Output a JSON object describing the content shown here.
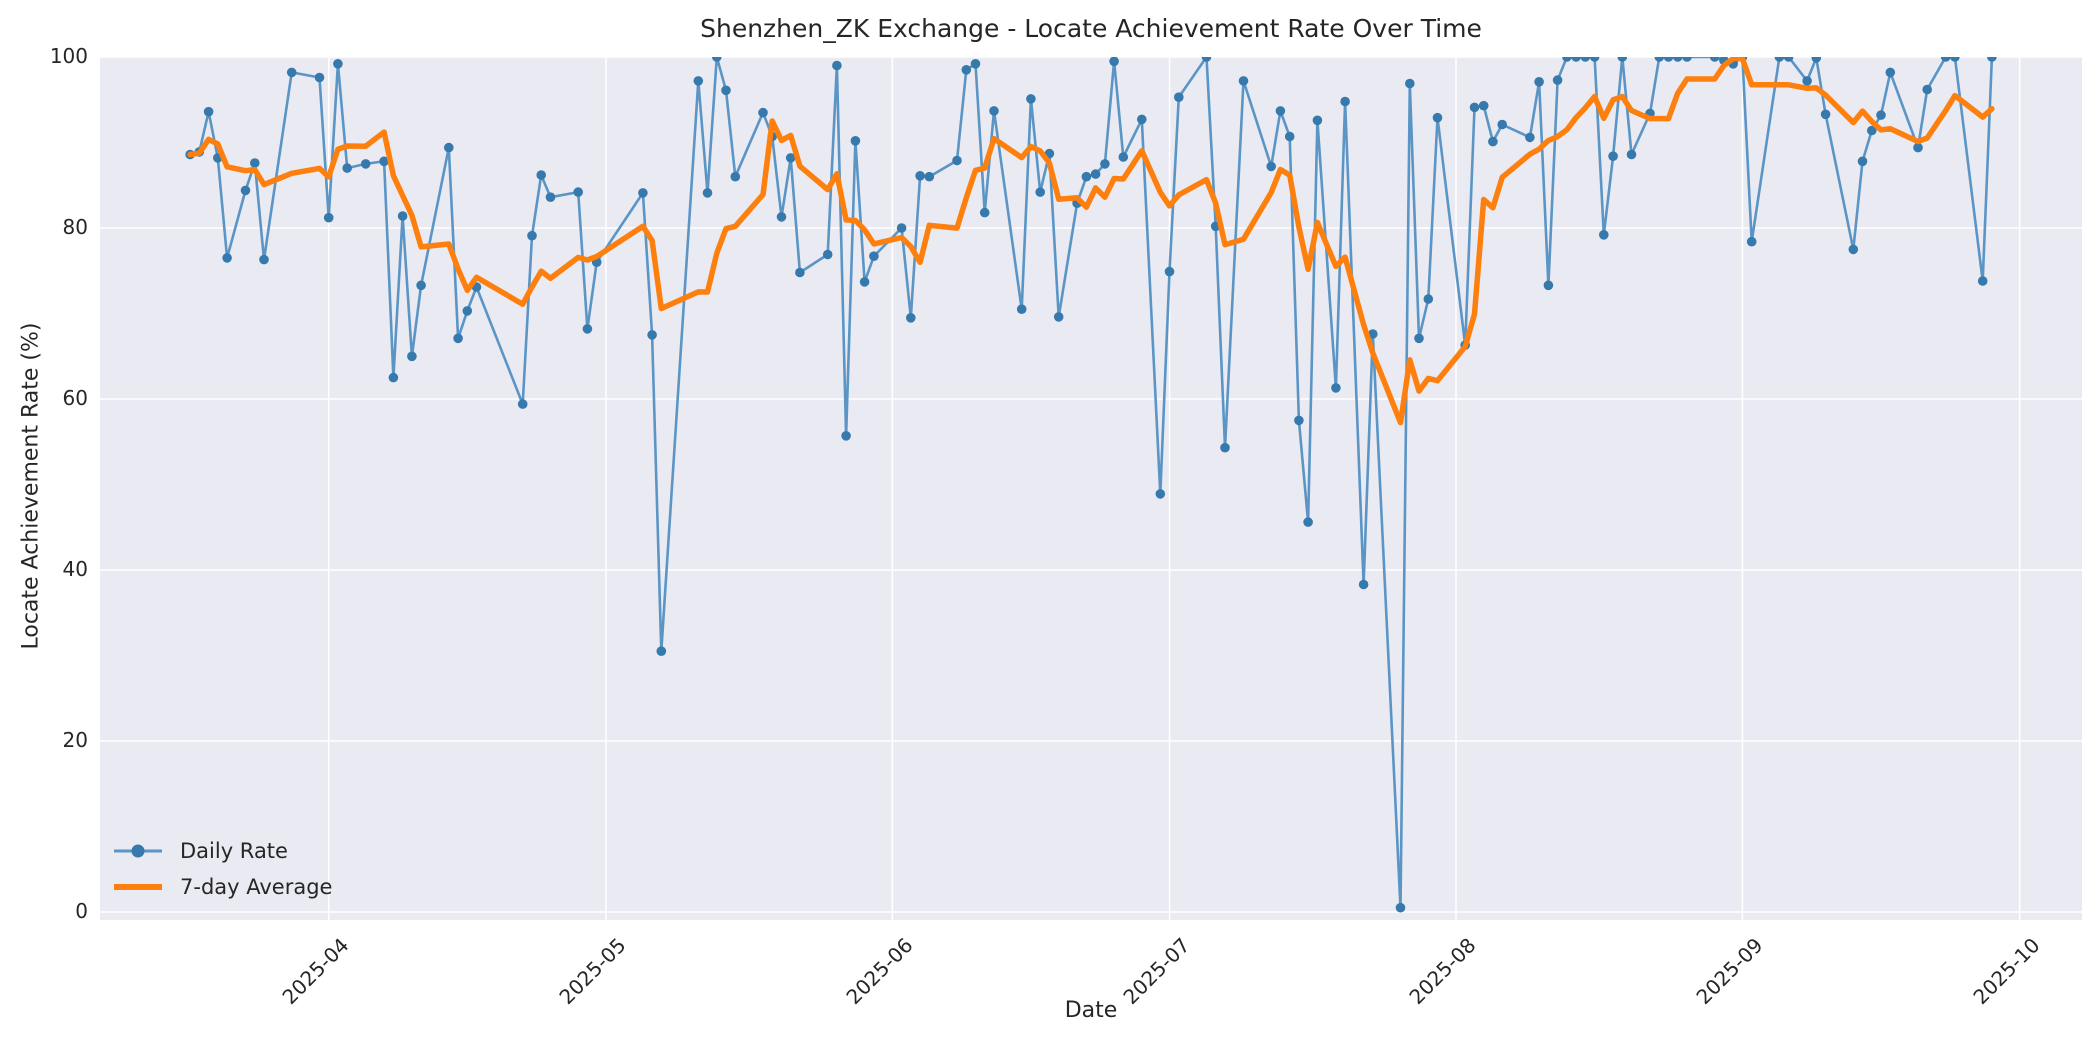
{
  "title": "Shenzhen_ZK Exchange - Locate Achievement Rate Over Time",
  "axes": {
    "plot_bg": "#eaeaf2",
    "grid_color": "#ffffff",
    "text_color": "#262626",
    "yticks": [
      0,
      20,
      40,
      60,
      80,
      100
    ],
    "xticks": [
      {
        "label": "2025-04",
        "date": "2025-04-01"
      },
      {
        "label": "2025-05",
        "date": "2025-05-01"
      },
      {
        "label": "2025-06",
        "date": "2025-06-01"
      },
      {
        "label": "2025-07",
        "date": "2025-07-01"
      },
      {
        "label": "2025-08",
        "date": "2025-08-01"
      },
      {
        "label": "2025-09",
        "date": "2025-09-01"
      },
      {
        "label": "2025-10",
        "date": "2025-10-01"
      }
    ]
  },
  "legend": {
    "items": [
      {
        "label": "Daily Rate"
      },
      {
        "label": "7-day Average"
      }
    ]
  },
  "chart_data": {
    "type": "line",
    "title": "Shenzhen_ZK Exchange - Locate Achievement Rate Over Time",
    "xlabel": "Date",
    "ylabel": "Locate Achievement Rate (%)",
    "ylim": [
      -1,
      100
    ],
    "x_range": [
      "2025-03-17",
      "2025-09-28"
    ],
    "grid": true,
    "legend_position": "lower-left",
    "series": [
      {
        "name": "Daily Rate",
        "type": "line-marker",
        "line_color": "#5b95c5",
        "marker_color": "#3679ad",
        "line_width": 2.6,
        "marker_radius": 4.8,
        "points": [
          [
            "2025-03-17",
            88.6
          ],
          [
            "2025-03-18",
            88.9
          ],
          [
            "2025-03-19",
            93.6
          ],
          [
            "2025-03-20",
            88.2
          ],
          [
            "2025-03-21",
            76.5
          ],
          [
            "2025-03-23",
            84.4
          ],
          [
            "2025-03-24",
            87.6
          ],
          [
            "2025-03-25",
            76.3
          ],
          [
            "2025-03-28",
            98.2
          ],
          [
            "2025-03-31",
            97.6
          ],
          [
            "2025-04-01",
            81.2
          ],
          [
            "2025-04-02",
            99.2
          ],
          [
            "2025-04-03",
            87.0
          ],
          [
            "2025-04-05",
            87.5
          ],
          [
            "2025-04-07",
            87.8
          ],
          [
            "2025-04-08",
            62.5
          ],
          [
            "2025-04-09",
            81.4
          ],
          [
            "2025-04-10",
            65.0
          ],
          [
            "2025-04-11",
            73.3
          ],
          [
            "2025-04-14",
            89.4
          ],
          [
            "2025-04-15",
            67.1
          ],
          [
            "2025-04-16",
            70.3
          ],
          [
            "2025-04-17",
            73.1
          ],
          [
            "2025-04-22",
            59.4
          ],
          [
            "2025-04-23",
            79.1
          ],
          [
            "2025-04-24",
            86.2
          ],
          [
            "2025-04-25",
            83.6
          ],
          [
            "2025-04-28",
            84.2
          ],
          [
            "2025-04-29",
            68.2
          ],
          [
            "2025-04-30",
            76.0
          ],
          [
            "2025-05-05",
            84.1
          ],
          [
            "2025-05-06",
            67.5
          ],
          [
            "2025-05-07",
            30.5
          ],
          [
            "2025-05-11",
            97.2
          ],
          [
            "2025-05-12",
            84.1
          ],
          [
            "2025-05-13",
            100.0
          ],
          [
            "2025-05-14",
            96.1
          ],
          [
            "2025-05-15",
            86.0
          ],
          [
            "2025-05-18",
            93.5
          ],
          [
            "2025-05-19",
            90.7
          ],
          [
            "2025-05-20",
            81.3
          ],
          [
            "2025-05-21",
            88.2
          ],
          [
            "2025-05-22",
            74.8
          ],
          [
            "2025-05-25",
            76.9
          ],
          [
            "2025-05-26",
            99.0
          ],
          [
            "2025-05-27",
            55.7
          ],
          [
            "2025-05-28",
            90.2
          ],
          [
            "2025-05-29",
            73.7
          ],
          [
            "2025-05-30",
            76.7
          ],
          [
            "2025-06-02",
            80.0
          ],
          [
            "2025-06-03",
            69.5
          ],
          [
            "2025-06-04",
            86.1
          ],
          [
            "2025-06-05",
            86.0
          ],
          [
            "2025-06-08",
            87.9
          ],
          [
            "2025-06-09",
            98.5
          ],
          [
            "2025-06-10",
            99.2
          ],
          [
            "2025-06-11",
            81.8
          ],
          [
            "2025-06-12",
            93.7
          ],
          [
            "2025-06-15",
            70.5
          ],
          [
            "2025-06-16",
            95.1
          ],
          [
            "2025-06-17",
            84.2
          ],
          [
            "2025-06-18",
            88.7
          ],
          [
            "2025-06-19",
            69.6
          ],
          [
            "2025-06-21",
            82.9
          ],
          [
            "2025-06-22",
            86.0
          ],
          [
            "2025-06-23",
            86.3
          ],
          [
            "2025-06-24",
            87.5
          ],
          [
            "2025-06-25",
            99.5
          ],
          [
            "2025-06-26",
            88.3
          ],
          [
            "2025-06-28",
            92.7
          ],
          [
            "2025-06-30",
            48.9
          ],
          [
            "2025-07-01",
            74.9
          ],
          [
            "2025-07-02",
            95.3
          ],
          [
            "2025-07-05",
            100.0
          ],
          [
            "2025-07-06",
            80.2
          ],
          [
            "2025-07-07",
            54.3
          ],
          [
            "2025-07-09",
            97.2
          ],
          [
            "2025-07-12",
            87.2
          ],
          [
            "2025-07-13",
            93.7
          ],
          [
            "2025-07-14",
            90.7
          ],
          [
            "2025-07-15",
            57.5
          ],
          [
            "2025-07-16",
            45.6
          ],
          [
            "2025-07-17",
            92.6
          ],
          [
            "2025-07-19",
            61.3
          ],
          [
            "2025-07-20",
            94.8
          ],
          [
            "2025-07-22",
            38.3
          ],
          [
            "2025-07-23",
            67.6
          ],
          [
            "2025-07-26",
            0.5
          ],
          [
            "2025-07-27",
            96.9
          ],
          [
            "2025-07-28",
            67.1
          ],
          [
            "2025-07-29",
            71.7
          ],
          [
            "2025-07-30",
            92.9
          ],
          [
            "2025-08-02",
            66.3
          ],
          [
            "2025-08-03",
            94.1
          ],
          [
            "2025-08-04",
            94.3
          ],
          [
            "2025-08-05",
            90.1
          ],
          [
            "2025-08-06",
            92.1
          ],
          [
            "2025-08-09",
            90.6
          ],
          [
            "2025-08-10",
            97.1
          ],
          [
            "2025-08-11",
            73.3
          ],
          [
            "2025-08-12",
            97.3
          ],
          [
            "2025-08-13",
            100.0
          ],
          [
            "2025-08-14",
            100.0
          ],
          [
            "2025-08-15",
            100.0
          ],
          [
            "2025-08-16",
            100.0
          ],
          [
            "2025-08-17",
            79.2
          ],
          [
            "2025-08-18",
            88.4
          ],
          [
            "2025-08-19",
            100.0
          ],
          [
            "2025-08-20",
            88.6
          ],
          [
            "2025-08-22",
            93.4
          ],
          [
            "2025-08-23",
            100.0
          ],
          [
            "2025-08-24",
            100.0
          ],
          [
            "2025-08-25",
            100.0
          ],
          [
            "2025-08-26",
            100.0
          ],
          [
            "2025-08-29",
            100.0
          ],
          [
            "2025-08-30",
            99.6
          ],
          [
            "2025-08-31",
            99.2
          ],
          [
            "2025-09-01",
            100.0
          ],
          [
            "2025-09-02",
            78.4
          ],
          [
            "2025-09-05",
            100.0
          ],
          [
            "2025-09-06",
            100.0
          ],
          [
            "2025-09-08",
            97.2
          ],
          [
            "2025-09-09",
            99.9
          ],
          [
            "2025-09-10",
            93.3
          ],
          [
            "2025-09-13",
            77.5
          ],
          [
            "2025-09-14",
            87.8
          ],
          [
            "2025-09-15",
            91.4
          ],
          [
            "2025-09-16",
            93.2
          ],
          [
            "2025-09-17",
            98.2
          ],
          [
            "2025-09-20",
            89.4
          ],
          [
            "2025-09-21",
            96.2
          ],
          [
            "2025-09-23",
            100.0
          ],
          [
            "2025-09-24",
            100.0
          ],
          [
            "2025-09-27",
            73.8
          ],
          [
            "2025-09-28",
            100.0
          ]
        ]
      },
      {
        "name": "7-day Average",
        "type": "line",
        "line_color": "#fd7f0e",
        "line_width": 5.5,
        "derived": "rolling_mean_over_last_7_daily_points_min_periods_1",
        "window": 7
      }
    ]
  }
}
